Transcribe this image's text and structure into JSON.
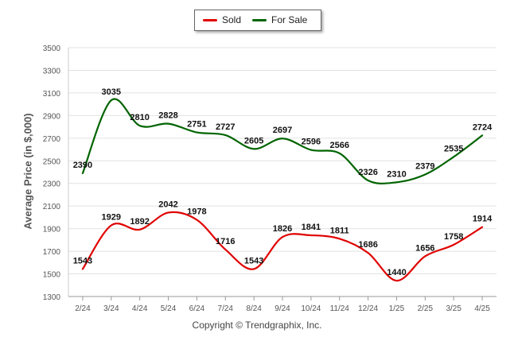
{
  "legend": {
    "sold_label": "Sold",
    "forsale_label": "For Sale"
  },
  "copyright": "Copyright © Trendgraphix, Inc.",
  "chart_data": {
    "type": "line",
    "categories": [
      "2/24",
      "3/24",
      "4/24",
      "5/24",
      "6/24",
      "7/24",
      "8/24",
      "9/24",
      "10/24",
      "11/24",
      "12/24",
      "1/25",
      "2/25",
      "3/25",
      "4/25"
    ],
    "ylabel": "Average Price (in $,000)",
    "ylim": [
      1300,
      3500
    ],
    "yticks": [
      1300,
      1500,
      1700,
      1900,
      2100,
      2300,
      2500,
      2700,
      2900,
      3100,
      3300,
      3500
    ],
    "grid": true,
    "legend_position": "top-center",
    "series": [
      {
        "name": "Sold",
        "color": "#e00000",
        "values": [
          1543,
          1929,
          1892,
          2042,
          1978,
          1716,
          1543,
          1826,
          1841,
          1811,
          1686,
          1440,
          1656,
          1758,
          1914
        ]
      },
      {
        "name": "For Sale",
        "color": "#006400",
        "values": [
          2390,
          3035,
          2810,
          2828,
          2751,
          2727,
          2605,
          2697,
          2596,
          2566,
          2326,
          2310,
          2379,
          2535,
          2724
        ]
      }
    ]
  }
}
